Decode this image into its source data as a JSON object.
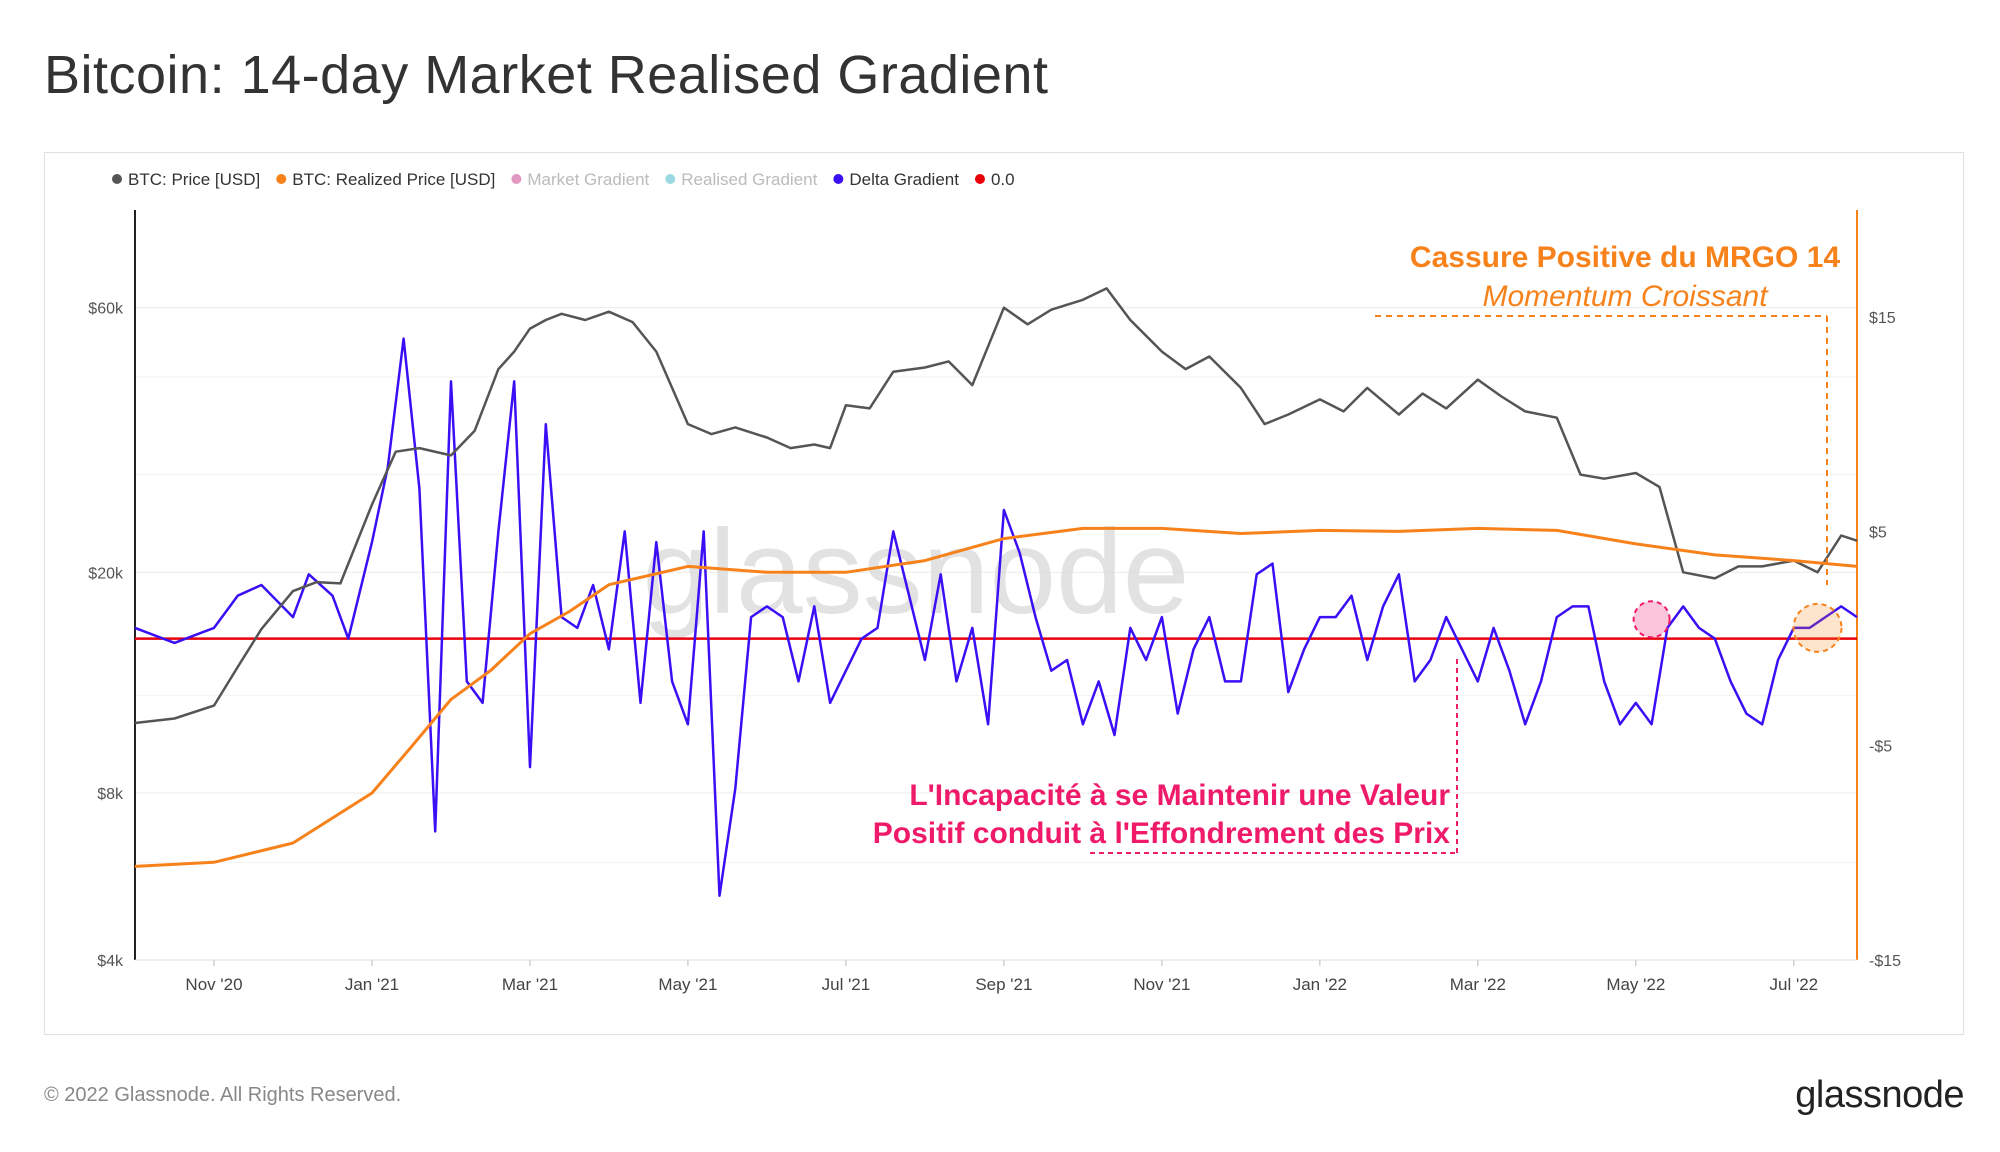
{
  "title": "Bitcoin: 14-day Market Realised Gradient",
  "footer": {
    "copyright": "© 2022 Glassnode. All Rights Reserved.",
    "brand": "glassnode"
  },
  "watermark": "glassnode",
  "colors": {
    "price": "#555555",
    "realized_price": "#f7821b",
    "market_gradient": "#d36ba6",
    "realised_gradient": "#6fc7d6",
    "delta_gradient": "#3b0ff5",
    "zero_line": "#e8000b",
    "annotation_orange": "#f7821b",
    "annotation_pink": "#ef1a69"
  },
  "annotations": {
    "top_title": "Cassure Positive du MRGO 14",
    "top_subtitle": "Momentum Croissant",
    "bottom_line1": "L'Incapacité à se Maintenir une Valeur",
    "bottom_line2": "Positif conduit à l'Effondrement des Prix"
  },
  "chart_data": {
    "type": "line",
    "title": "Bitcoin: 14-day Market Realised Gradient",
    "legend": [
      {
        "name": "BTC: Price [USD]",
        "color": "#555555",
        "faded": false
      },
      {
        "name": "BTC: Realized Price [USD]",
        "color": "#f7821b",
        "faded": false
      },
      {
        "name": "Market Gradient",
        "color": "#d36ba6",
        "faded": true
      },
      {
        "name": "Realised Gradient",
        "color": "#6fc7d6",
        "faded": true
      },
      {
        "name": "Delta Gradient",
        "color": "#3b0ff5",
        "faded": false
      },
      {
        "name": "0.0",
        "color": "#e8000b",
        "faded": false
      }
    ],
    "x_labels": [
      "Nov '20",
      "Jan '21",
      "Mar '21",
      "May '21",
      "Jul '21",
      "Sep '21",
      "Nov '21",
      "Jan '22",
      "Mar '22",
      "May '22",
      "Jul '22"
    ],
    "x_range": [
      "2020-10-01",
      "2022-07-25"
    ],
    "y_left": {
      "scale": "log",
      "ticks": [
        "$4k",
        "$8k",
        "$20k",
        "$60k"
      ],
      "tick_values": [
        4000,
        8000,
        20000,
        60000
      ],
      "range": [
        4000,
        90000
      ]
    },
    "y_right": {
      "scale": "linear",
      "ticks": [
        "$15",
        "$5",
        "-$5",
        "-$15"
      ],
      "tick_values": [
        15,
        5,
        -5,
        -15
      ],
      "range": [
        -15,
        20
      ]
    },
    "series": [
      {
        "name": "BTC: Price [USD]",
        "axis": "left",
        "x_months": [
          0.0,
          0.5,
          1.0,
          1.3,
          1.6,
          2.0,
          2.3,
          2.6,
          3.0,
          3.3,
          3.6,
          4.0,
          4.3,
          4.6,
          4.8,
          5.0,
          5.2,
          5.4,
          5.7,
          6.0,
          6.3,
          6.6,
          7.0,
          7.3,
          7.6,
          8.0,
          8.3,
          8.6,
          8.8,
          9.0,
          9.3,
          9.6,
          10.0,
          10.3,
          10.6,
          11.0,
          11.3,
          11.6,
          12.0,
          12.3,
          12.6,
          13.0,
          13.3,
          13.6,
          14.0,
          14.3,
          14.6,
          15.0,
          15.3,
          15.6,
          16.0,
          16.3,
          16.6,
          17.0,
          17.3,
          17.6,
          18.0,
          18.3,
          18.6,
          19.0,
          19.3,
          19.6,
          20.0,
          20.3,
          20.6,
          21.0,
          21.3,
          21.6,
          21.8
        ],
        "values": [
          10700,
          10900,
          11500,
          13500,
          15800,
          18500,
          19200,
          19100,
          26500,
          33000,
          33500,
          32500,
          36000,
          46500,
          50000,
          55000,
          57000,
          58500,
          57000,
          59000,
          56500,
          50000,
          37000,
          35500,
          36500,
          35000,
          33500,
          34000,
          33500,
          40000,
          39500,
          46000,
          46800,
          48000,
          43500,
          60000,
          56000,
          59500,
          62000,
          65000,
          57000,
          50000,
          46500,
          49000,
          43000,
          37000,
          38500,
          41000,
          39000,
          43000,
          38500,
          42000,
          39500,
          44500,
          41500,
          39000,
          38000,
          30000,
          29500,
          30200,
          28500,
          20000,
          19500,
          20500,
          20500,
          21000,
          20000,
          23300,
          22800
        ]
      },
      {
        "name": "BTC: Realized Price [USD]",
        "axis": "left",
        "x_months": [
          0.0,
          1.0,
          2.0,
          3.0,
          3.5,
          4.0,
          4.5,
          5.0,
          5.5,
          6.0,
          7.0,
          8.0,
          9.0,
          10.0,
          11.0,
          12.0,
          13.0,
          14.0,
          15.0,
          16.0,
          17.0,
          18.0,
          19.0,
          20.0,
          21.0,
          21.8
        ],
        "values": [
          5900,
          6000,
          6500,
          8000,
          9700,
          11800,
          13300,
          15500,
          17000,
          19000,
          20500,
          20000,
          20000,
          21000,
          23000,
          24000,
          24000,
          23500,
          23800,
          23700,
          24000,
          23800,
          22500,
          21500,
          21000,
          20500
        ]
      },
      {
        "name": "Delta Gradient",
        "axis": "right",
        "x_months": [
          0.0,
          0.5,
          1.0,
          1.3,
          1.6,
          2.0,
          2.2,
          2.5,
          2.7,
          3.0,
          3.2,
          3.4,
          3.6,
          3.8,
          4.0,
          4.2,
          4.4,
          4.6,
          4.8,
          5.0,
          5.2,
          5.4,
          5.6,
          5.8,
          6.0,
          6.2,
          6.4,
          6.6,
          6.8,
          7.0,
          7.2,
          7.4,
          7.6,
          7.8,
          8.0,
          8.2,
          8.4,
          8.6,
          8.8,
          9.0,
          9.2,
          9.4,
          9.6,
          9.8,
          10.0,
          10.2,
          10.4,
          10.6,
          10.8,
          11.0,
          11.2,
          11.4,
          11.6,
          11.8,
          12.0,
          12.2,
          12.4,
          12.6,
          12.8,
          13.0,
          13.2,
          13.4,
          13.6,
          13.8,
          14.0,
          14.2,
          14.4,
          14.6,
          14.8,
          15.0,
          15.2,
          15.4,
          15.6,
          15.8,
          16.0,
          16.2,
          16.4,
          16.6,
          16.8,
          17.0,
          17.2,
          17.4,
          17.6,
          17.8,
          18.0,
          18.2,
          18.4,
          18.6,
          18.8,
          19.0,
          19.2,
          19.4,
          19.6,
          19.8,
          20.0,
          20.2,
          20.4,
          20.6,
          20.8,
          21.0,
          21.2,
          21.4,
          21.6,
          21.8
        ],
        "values": [
          0.5,
          -0.2,
          0.5,
          2.0,
          2.5,
          1.0,
          3.0,
          2.0,
          0.0,
          4.5,
          8.0,
          14.0,
          7.0,
          -9.0,
          12.0,
          -2.0,
          -3.0,
          5.0,
          12.0,
          -6.0,
          10.0,
          1.0,
          0.5,
          2.5,
          -0.5,
          5.0,
          -3.0,
          4.5,
          -2.0,
          -4.0,
          5.0,
          -12.0,
          -7.0,
          1.0,
          1.5,
          1.0,
          -2.0,
          1.5,
          -3.0,
          -1.5,
          0.0,
          0.5,
          5.0,
          2.0,
          -1.0,
          3.0,
          -2.0,
          0.5,
          -4.0,
          6.0,
          4.0,
          1.0,
          -1.5,
          -1.0,
          -4.0,
          -2.0,
          -4.5,
          0.5,
          -1.0,
          1.0,
          -3.5,
          -0.5,
          1.0,
          -2.0,
          -2.0,
          3.0,
          3.5,
          -2.5,
          -0.5,
          1.0,
          1.0,
          2.0,
          -1.0,
          1.5,
          3.0,
          -2.0,
          -1.0,
          1.0,
          -0.5,
          -2.0,
          0.5,
          -1.5,
          -4.0,
          -2.0,
          1.0,
          1.5,
          1.5,
          -2.0,
          -4.0,
          -3.0,
          -4.0,
          0.5,
          1.5,
          0.5,
          0.0,
          -2.0,
          -3.5,
          -4.0,
          -1.0,
          0.5,
          0.5,
          1.0,
          1.5,
          1.0
        ]
      },
      {
        "name": "0.0",
        "axis": "right",
        "constant": 0.0
      }
    ]
  }
}
